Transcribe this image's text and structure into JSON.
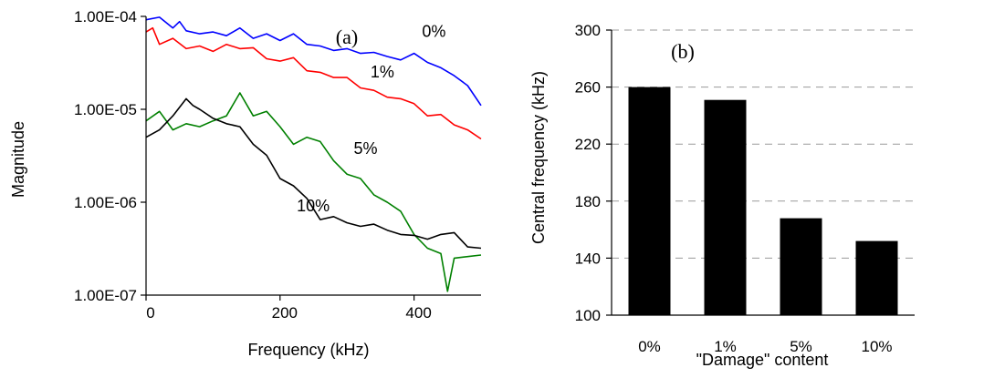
{
  "chart_data": [
    {
      "type": "line",
      "panel_label": "(a)",
      "xlabel": "Frequency (kHz)",
      "ylabel": "Magnitude",
      "xlim": [
        0,
        500
      ],
      "ylim": [
        1e-07,
        0.0001
      ],
      "yscale": "log",
      "x_ticks": [
        0,
        200,
        400
      ],
      "x_tick_labels": [
        "0",
        "200",
        "400"
      ],
      "y_ticks": [
        1e-07,
        1e-06,
        1e-05,
        0.0001
      ],
      "y_tick_labels": [
        "1.00E-07",
        "1.00E-06",
        "1.00E-05",
        "1.00E-04"
      ],
      "grid": false,
      "legend": "none",
      "series": [
        {
          "name": "0%",
          "color": "#0000ff",
          "x": [
            0,
            20,
            40,
            50,
            60,
            80,
            100,
            120,
            140,
            160,
            180,
            200,
            220,
            240,
            260,
            280,
            300,
            320,
            340,
            360,
            380,
            400,
            420,
            440,
            460,
            480,
            500
          ],
          "y": [
            9.2e-05,
            9.8e-05,
            7.5e-05,
            8.8e-05,
            7e-05,
            6.5e-05,
            6.8e-05,
            6.2e-05,
            7.5e-05,
            5.8e-05,
            6.5e-05,
            5.5e-05,
            6.5e-05,
            5e-05,
            4.8e-05,
            4.3e-05,
            4.5e-05,
            4e-05,
            4.1e-05,
            3.7e-05,
            3.4e-05,
            4e-05,
            3.2e-05,
            2.8e-05,
            2.3e-05,
            1.8e-05,
            1.1e-05
          ]
        },
        {
          "name": "1%",
          "color": "#ff0000",
          "x": [
            0,
            10,
            20,
            40,
            60,
            80,
            100,
            120,
            140,
            160,
            180,
            200,
            220,
            240,
            260,
            280,
            300,
            320,
            340,
            360,
            380,
            400,
            420,
            440,
            460,
            480,
            500
          ],
          "y": [
            6.8e-05,
            7.5e-05,
            5e-05,
            5.8e-05,
            4.5e-05,
            4.8e-05,
            4.2e-05,
            5e-05,
            4.5e-05,
            4.6e-05,
            3.5e-05,
            3.3e-05,
            3.6e-05,
            2.6e-05,
            2.5e-05,
            2.2e-05,
            2.2e-05,
            1.7e-05,
            1.6e-05,
            1.35e-05,
            1.3e-05,
            1.15e-05,
            8.5e-06,
            8.8e-06,
            6.8e-06,
            6e-06,
            4.8e-06
          ]
        },
        {
          "name": "5%",
          "color": "#008000",
          "x": [
            0,
            20,
            40,
            60,
            80,
            100,
            120,
            140,
            160,
            180,
            200,
            220,
            240,
            260,
            280,
            300,
            320,
            340,
            360,
            380,
            400,
            420,
            440,
            450,
            460,
            480,
            500
          ],
          "y": [
            7.5e-06,
            9.5e-06,
            6e-06,
            7e-06,
            6.5e-06,
            7.5e-06,
            8.5e-06,
            1.5e-05,
            8.5e-06,
            9.5e-06,
            6.5e-06,
            4.2e-06,
            5e-06,
            4.5e-06,
            2.8e-06,
            2e-06,
            1.8e-06,
            1.2e-06,
            1e-06,
            8e-07,
            4.5e-07,
            3.2e-07,
            2.8e-07,
            1.1e-07,
            2.5e-07,
            2.6e-07,
            2.7e-07
          ]
        },
        {
          "name": "10%",
          "color": "#000000",
          "x": [
            0,
            20,
            40,
            60,
            70,
            80,
            100,
            120,
            140,
            160,
            180,
            200,
            220,
            240,
            260,
            280,
            300,
            320,
            340,
            360,
            380,
            400,
            420,
            440,
            460,
            480,
            500
          ],
          "y": [
            5e-06,
            6e-06,
            8.5e-06,
            1.3e-05,
            1.1e-05,
            1e-05,
            8e-06,
            7e-06,
            6.5e-06,
            4.2e-06,
            3.2e-06,
            1.8e-06,
            1.5e-06,
            1.1e-06,
            6.5e-07,
            7e-07,
            6e-07,
            5.5e-07,
            5.8e-07,
            5e-07,
            4.5e-07,
            4.4e-07,
            4e-07,
            4.5e-07,
            4.7e-07,
            3.3e-07,
            3.2e-07
          ]
        }
      ],
      "annotations": [
        {
          "text": "0%",
          "x": 412,
          "y": 6e-05
        },
        {
          "text": "1%",
          "x": 335,
          "y": 2.2e-05
        },
        {
          "text": "5%",
          "x": 310,
          "y": 3.3e-06
        },
        {
          "text": "10%",
          "x": 225,
          "y": 8e-07
        }
      ]
    },
    {
      "type": "bar",
      "panel_label": "(b)",
      "categories": [
        "0%",
        "1%",
        "5%",
        "10%"
      ],
      "values": [
        260,
        251,
        168,
        152
      ],
      "xlabel": "\"Damage\" content",
      "ylabel": "Central frequency (kHz)",
      "ylim": [
        100,
        300
      ],
      "y_ticks": [
        100,
        140,
        180,
        220,
        260,
        300
      ],
      "grid": "horizontal dashed",
      "legend": "none",
      "bar_color": "#000000"
    }
  ]
}
